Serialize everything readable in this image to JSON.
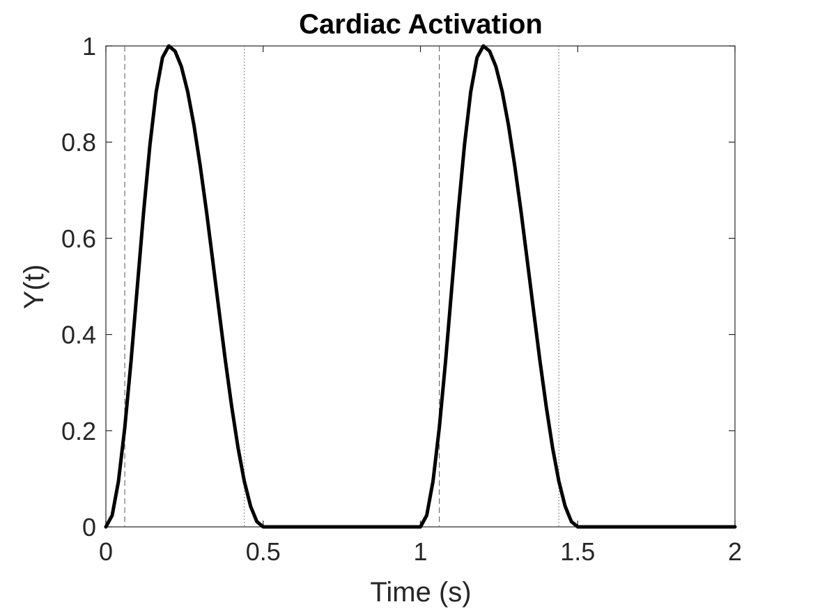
{
  "chart_data": {
    "type": "line",
    "title": "Cardiac Activation",
    "xlabel": "Time (s)",
    "ylabel": "Y(t)",
    "xlim": [
      0,
      2
    ],
    "ylim": [
      0,
      1
    ],
    "x_ticks": [
      0,
      0.5,
      1,
      1.5,
      2
    ],
    "x_tick_labels": [
      "0",
      "0.5",
      "1",
      "1.5",
      "2"
    ],
    "y_ticks": [
      0,
      0.2,
      0.4,
      0.6,
      0.8,
      1
    ],
    "y_tick_labels": [
      "0",
      "0.2",
      "0.4",
      "0.6",
      "0.8",
      "1"
    ],
    "grid": false,
    "box": true,
    "series": [
      {
        "color": "#000000",
        "style": "solid",
        "x": [
          0,
          0.02,
          0.04,
          0.06,
          0.08,
          0.1,
          0.12,
          0.14,
          0.16,
          0.18,
          0.2,
          0.22,
          0.24,
          0.26,
          0.28,
          0.3,
          0.32,
          0.34,
          0.36,
          0.38,
          0.4,
          0.42,
          0.44,
          0.46,
          0.48,
          0.5,
          0.6,
          0.7,
          0.8,
          0.9,
          1.0,
          1.02,
          1.04,
          1.06,
          1.08,
          1.1,
          1.12,
          1.14,
          1.16,
          1.18,
          1.2,
          1.22,
          1.24,
          1.26,
          1.28,
          1.3,
          1.32,
          1.34,
          1.36,
          1.38,
          1.4,
          1.42,
          1.44,
          1.46,
          1.48,
          1.5,
          1.6,
          1.7,
          1.8,
          1.9,
          2.0
        ],
        "y": [
          0,
          0.024,
          0.095,
          0.206,
          0.345,
          0.5,
          0.655,
          0.794,
          0.905,
          0.976,
          1.0,
          0.989,
          0.957,
          0.905,
          0.835,
          0.75,
          0.655,
          0.552,
          0.448,
          0.345,
          0.25,
          0.165,
          0.095,
          0.043,
          0.011,
          0,
          0,
          0,
          0,
          0,
          0,
          0.024,
          0.095,
          0.206,
          0.345,
          0.5,
          0.655,
          0.794,
          0.905,
          0.976,
          1.0,
          0.989,
          0.957,
          0.905,
          0.835,
          0.75,
          0.655,
          0.552,
          0.448,
          0.345,
          0.25,
          0.165,
          0.095,
          0.043,
          0.011,
          0,
          0,
          0,
          0,
          0,
          0
        ]
      }
    ],
    "reference_lines": [
      {
        "x": 0.06,
        "style": "dashed",
        "color": "#555555"
      },
      {
        "x": 0.44,
        "style": "dotted",
        "color": "#555555"
      },
      {
        "x": 1.06,
        "style": "dashed",
        "color": "#555555"
      },
      {
        "x": 1.44,
        "style": "dotted",
        "color": "#555555"
      }
    ]
  }
}
